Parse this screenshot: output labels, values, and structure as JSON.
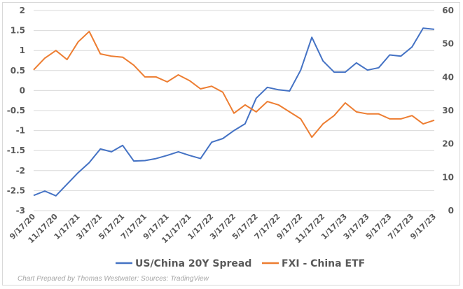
{
  "chart_data": {
    "type": "line",
    "title": "",
    "x_tick_labels": [
      "9/17/20",
      "11/17/20",
      "1/17/21",
      "3/17/21",
      "5/17/21",
      "7/17/21",
      "9/17/21",
      "11/17/21",
      "1/17/22",
      "3/17/22",
      "5/17/22",
      "7/17/22",
      "9/17/22",
      "11/17/22",
      "1/17/23",
      "3/17/23",
      "5/17/23",
      "7/17/23",
      "9/17/23"
    ],
    "x": [
      "9/17/20",
      "10/17/20",
      "11/17/20",
      "12/17/20",
      "1/17/21",
      "2/17/21",
      "3/17/21",
      "4/17/21",
      "5/17/21",
      "6/17/21",
      "7/17/21",
      "8/17/21",
      "9/17/21",
      "10/17/21",
      "11/17/21",
      "12/17/21",
      "1/17/22",
      "2/17/22",
      "3/17/22",
      "4/17/22",
      "5/17/22",
      "6/17/22",
      "7/17/22",
      "8/17/22",
      "9/17/22",
      "10/17/22",
      "11/17/22",
      "12/17/22",
      "1/17/23",
      "2/17/23",
      "3/17/23",
      "4/17/23",
      "5/17/23",
      "6/17/23",
      "7/17/23",
      "8/17/23",
      "9/17/23"
    ],
    "y_left": {
      "range": [
        -3,
        2
      ],
      "ticks": [
        "2",
        "1.5",
        "1",
        "0.5",
        "0",
        "-0.5",
        "-1",
        "-1.5",
        "-2",
        "-2.5",
        "-3"
      ]
    },
    "y_right": {
      "range": [
        0,
        60
      ],
      "ticks": [
        "60",
        "50",
        "40",
        "30",
        "20",
        "10",
        "0"
      ]
    },
    "grid": true,
    "legend_placement": "bottom",
    "series": [
      {
        "name": "US/China 20Y Spread",
        "axis": "left",
        "color": "#4472c4",
        "values": [
          -2.62,
          -2.51,
          -2.63,
          -2.34,
          -2.05,
          -1.8,
          -1.46,
          -1.53,
          -1.37,
          -1.76,
          -1.75,
          -1.7,
          -1.62,
          -1.53,
          -1.62,
          -1.7,
          -1.29,
          -1.2,
          -1.0,
          -0.83,
          -0.19,
          0.08,
          0.02,
          -0.01,
          0.51,
          1.33,
          0.74,
          0.46,
          0.46,
          0.69,
          0.51,
          0.57,
          0.89,
          0.86,
          1.09,
          1.56,
          1.53
        ]
      },
      {
        "name": "FXI - China ETF",
        "axis": "right",
        "color": "#ed7d31",
        "values": [
          42.2,
          45.7,
          48.0,
          45.3,
          50.6,
          53.7,
          47.0,
          46.3,
          46.0,
          43.6,
          40.1,
          40.1,
          38.6,
          40.7,
          39.0,
          36.5,
          37.3,
          35.5,
          29.2,
          31.7,
          29.6,
          32.7,
          31.7,
          29.6,
          27.5,
          22.0,
          26.0,
          28.5,
          32.3,
          29.6,
          29.0,
          29.0,
          27.5,
          27.5,
          28.5,
          26.0,
          27.1
        ]
      }
    ]
  },
  "footer": {
    "credit": "Chart Prepared by Thomas Westwater: Sources: TradingView"
  }
}
